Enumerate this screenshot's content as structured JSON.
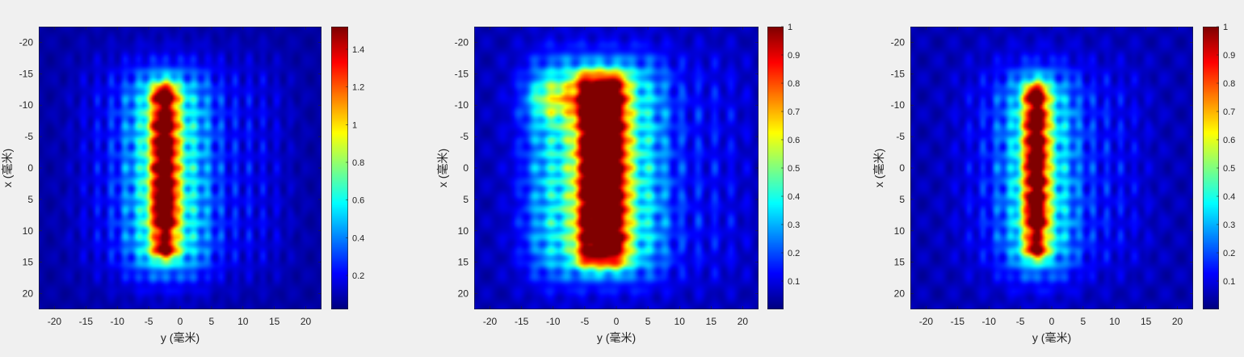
{
  "figure": {
    "background": "#f0f0f0",
    "axis_color": "#262626"
  },
  "colormap": "jet",
  "chart_data": [
    {
      "type": "heatmap",
      "title": "",
      "xlabel": "y (毫米)",
      "ylabel": "x (毫米)",
      "xlim": [
        -22.5,
        22.5
      ],
      "ylim": [
        22.5,
        -22.5
      ],
      "y_reversed": true,
      "xticks": [
        -20,
        -15,
        -10,
        -5,
        0,
        5,
        10,
        15,
        20
      ],
      "yticks": [
        -20,
        -15,
        -10,
        -5,
        0,
        5,
        10,
        15,
        20
      ],
      "xticklabels": [
        "-20",
        "-15",
        "-10",
        "-5",
        "0",
        "5",
        "10",
        "15",
        "20"
      ],
      "yticklabels": [
        "-20",
        "-15",
        "-10",
        "-5",
        "0",
        "5",
        "10",
        "15",
        "20"
      ],
      "colorbar": {
        "range": [
          0.02,
          1.52
        ],
        "ticks": [
          0.2,
          0.4,
          0.6,
          0.8,
          1,
          1.2,
          1.4
        ],
        "ticklabels": [
          "0.2",
          "0.4",
          "0.6",
          "0.8",
          "1",
          "1.2",
          "1.4"
        ]
      },
      "field": {
        "core": {
          "y_center": -2.5,
          "x_range": [
            -13.5,
            14
          ],
          "half_width": 2.2,
          "peak": 1.5,
          "bulges": [
            -11.5,
            -7,
            -3.5,
            0,
            3,
            5.5,
            8,
            13.5
          ]
        },
        "halo": {
          "y_range": [
            -8,
            4
          ],
          "x_range": [
            -15,
            17
          ],
          "level": 0.55
        },
        "fringes": {
          "y_range": [
            -16,
            16
          ],
          "x_range": [
            -17,
            17
          ],
          "level": 0.25,
          "period": 2.2
        },
        "background": 0.07
      }
    },
    {
      "type": "heatmap",
      "title": "",
      "xlabel": "y (毫米)",
      "ylabel": "x (毫米)",
      "xlim": [
        -22.5,
        22.5
      ],
      "ylim": [
        22.5,
        -22.5
      ],
      "y_reversed": true,
      "xticks": [
        -20,
        -15,
        -10,
        -5,
        0,
        5,
        10,
        15,
        20
      ],
      "yticks": [
        -20,
        -15,
        -10,
        -5,
        0,
        5,
        10,
        15,
        20
      ],
      "xticklabels": [
        "-20",
        "-15",
        "-10",
        "-5",
        "0",
        "5",
        "10",
        "15",
        "20"
      ],
      "yticklabels": [
        "-20",
        "-15",
        "-10",
        "-5",
        "0",
        "5",
        "10",
        "15",
        "20"
      ],
      "colorbar": {
        "range": [
          0.0,
          1.0
        ],
        "ticks": [
          0.1,
          0.2,
          0.3,
          0.4,
          0.5,
          0.6,
          0.7,
          0.8,
          0.9,
          1
        ],
        "ticklabels": [
          "0.1",
          "0.2",
          "0.3",
          "0.4",
          "0.5",
          "0.6",
          "0.7",
          "0.8",
          "0.9",
          "1"
        ]
      },
      "field": {
        "core": {
          "y_range": [
            -6,
            1.5
          ],
          "x_range": [
            -15,
            15.5
          ],
          "level": 0.88
        },
        "halo": {
          "y_range": [
            -13,
            7
          ],
          "x_range": [
            -17,
            17
          ],
          "level": 0.35
        },
        "serif": {
          "y_range": [
            -13,
            -5
          ],
          "x_range": [
            -13,
            -9
          ],
          "level": 0.4
        },
        "fringes": {
          "y_range": [
            -15,
            20
          ],
          "x_range": [
            -18,
            18
          ],
          "level": 0.15,
          "period": 2.6
        },
        "background": 0.05
      }
    },
    {
      "type": "heatmap",
      "title": "",
      "xlabel": "y (毫米)",
      "ylabel": "x (毫米)",
      "xlim": [
        -22.5,
        22.5
      ],
      "ylim": [
        22.5,
        -22.5
      ],
      "y_reversed": true,
      "xticks": [
        -20,
        -15,
        -10,
        -5,
        0,
        5,
        10,
        15,
        20
      ],
      "yticks": [
        -20,
        -15,
        -10,
        -5,
        0,
        5,
        10,
        15,
        20
      ],
      "xticklabels": [
        "-20",
        "-15",
        "-10",
        "-5",
        "0",
        "5",
        "10",
        "15",
        "20"
      ],
      "yticklabels": [
        "-20",
        "-15",
        "-10",
        "-5",
        "0",
        "5",
        "10",
        "15",
        "20"
      ],
      "colorbar": {
        "range": [
          0.0,
          1.0
        ],
        "ticks": [
          0.1,
          0.2,
          0.3,
          0.4,
          0.5,
          0.6,
          0.7,
          0.8,
          0.9,
          1
        ],
        "ticklabels": [
          "0.1",
          "0.2",
          "0.3",
          "0.4",
          "0.5",
          "0.6",
          "0.7",
          "0.8",
          "0.9",
          "1"
        ]
      },
      "field": {
        "core": {
          "y_center": -2.5,
          "x_range": [
            -13.5,
            14
          ],
          "half_width": 2.0,
          "peak": 1.0,
          "bulges": [
            -11.5,
            -7.5,
            -4,
            -1,
            2,
            5,
            8,
            13.5
          ]
        },
        "halo": {
          "y_range": [
            -7,
            3
          ],
          "x_range": [
            -15,
            17
          ],
          "level": 0.35
        },
        "fringes": {
          "y_range": [
            -14,
            14
          ],
          "x_range": [
            -16,
            16
          ],
          "level": 0.16,
          "period": 2.2
        },
        "background": 0.05
      }
    }
  ]
}
